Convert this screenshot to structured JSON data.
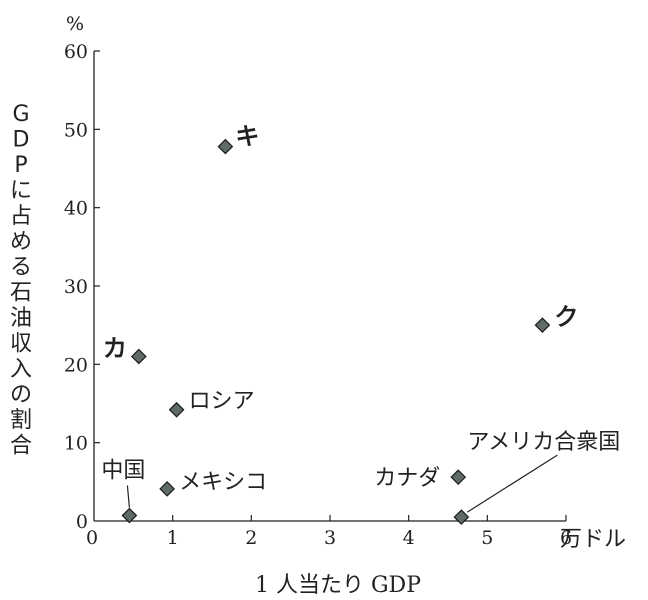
{
  "chart_data": {
    "type": "scatter",
    "xlabel": "1 人当たり GDP",
    "x_unit": "万ドル",
    "ylabel": "GDPに占める石油収入の割合",
    "y_unit": "%",
    "xlim": [
      0,
      6
    ],
    "ylim": [
      0,
      60
    ],
    "x_ticks": [
      "0",
      "1",
      "2",
      "3",
      "4",
      "5",
      "6"
    ],
    "y_ticks": [
      "0",
      "10",
      "20",
      "30",
      "40",
      "50",
      "60"
    ],
    "marker_color": "#5f6b66",
    "points": [
      {
        "label": "キ",
        "x": 1.67,
        "y": 47.8,
        "bold": true
      },
      {
        "label": "ク",
        "x": 5.7,
        "y": 25.0,
        "bold": true
      },
      {
        "label": "カ",
        "x": 0.57,
        "y": 21.0,
        "bold": true
      },
      {
        "label": "ロシア",
        "x": 1.05,
        "y": 14.2,
        "bold": false
      },
      {
        "label": "メキシコ",
        "x": 0.93,
        "y": 4.1,
        "bold": false
      },
      {
        "label": "中国",
        "x": 0.45,
        "y": 0.7,
        "bold": false
      },
      {
        "label": "カナダ",
        "x": 4.63,
        "y": 5.6,
        "bold": false
      },
      {
        "label": "アメリカ合衆国",
        "x": 4.67,
        "y": 0.5,
        "bold": false
      }
    ]
  }
}
